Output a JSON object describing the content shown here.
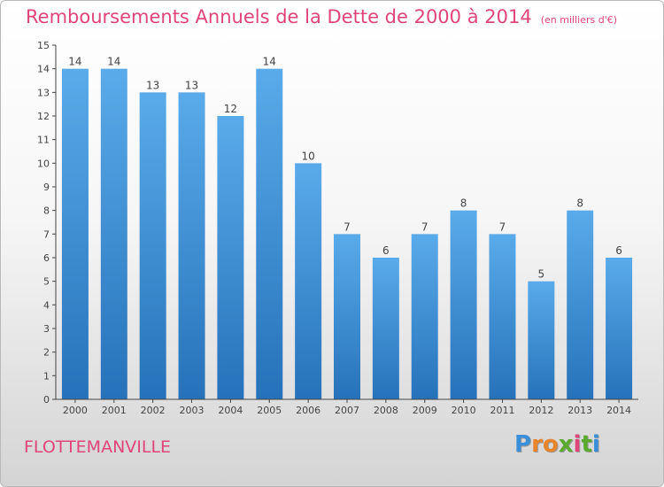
{
  "chart_data": {
    "type": "bar",
    "title": "Remboursements Annuels de la Dette de 2000 à 2014",
    "subtitle": "(en milliers d'€)",
    "categories": [
      "2000",
      "2001",
      "2002",
      "2003",
      "2004",
      "2005",
      "2006",
      "2007",
      "2008",
      "2009",
      "2010",
      "2011",
      "2012",
      "2013",
      "2014"
    ],
    "values": [
      14,
      14,
      13,
      13,
      12,
      14,
      10,
      7,
      6,
      7,
      8,
      7,
      5,
      8,
      6
    ],
    "ylim": [
      0,
      15
    ],
    "yticks": [
      0,
      1,
      2,
      3,
      4,
      5,
      6,
      7,
      8,
      9,
      10,
      11,
      12,
      13,
      14,
      15
    ],
    "grid": false,
    "bar_color": "#4f9fe0",
    "bar_color_dark": "#2672ba"
  },
  "footer": {
    "commune": "FLOTTEMANVILLE",
    "logo_letters": [
      "P",
      "r",
      "o",
      "x",
      "i",
      "t",
      "i"
    ],
    "logo_colors": [
      "#3a8fd8",
      "#e8842a",
      "#e8842a",
      "#5aaa2e",
      "#e0457a",
      "#5aaa2e",
      "#3a8fd8"
    ]
  },
  "colors": {
    "title": "#e0457a",
    "axis": "#444444"
  }
}
